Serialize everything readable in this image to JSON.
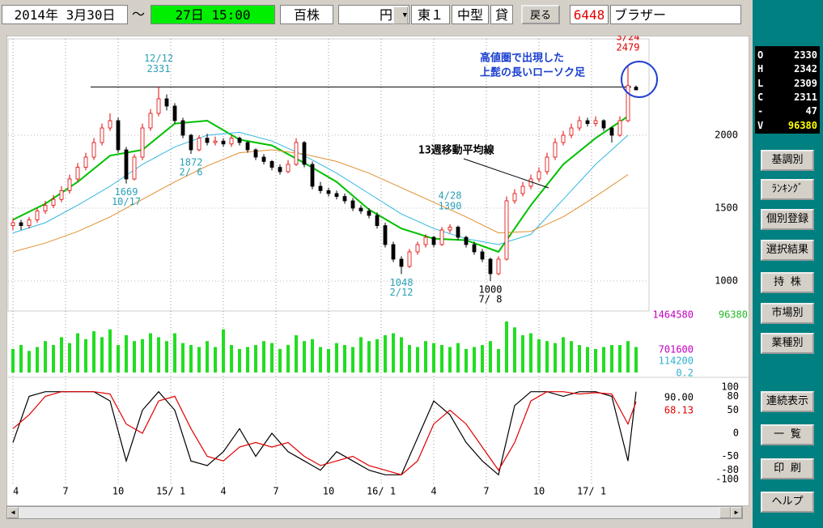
{
  "toolbar": {
    "date_from": "2014年 3月30日",
    "tilde": "～",
    "date_to": "27日 15:00",
    "unit": "百株",
    "currency": "円",
    "market": "東１",
    "size": "中型",
    "margin": "貸",
    "back": "戻る",
    "code": "6448",
    "name": "ブラザー"
  },
  "quote": [
    {
      "label": "O",
      "value": 2330
    },
    {
      "label": "H",
      "value": 2342
    },
    {
      "label": "L",
      "value": 2309
    },
    {
      "label": "C",
      "value": 2311
    },
    {
      "label": "-",
      "value": 47
    },
    {
      "label": "V",
      "value": 96380
    }
  ],
  "buttons": [
    "基調別",
    "ﾗﾝｷﾝｸﾞ",
    "個別登録",
    "選択結果",
    "持 株",
    "市場別",
    "業種別",
    "連続表示",
    "一 覧",
    "印 刷",
    "ヘルプ"
  ],
  "chart_data": {
    "type": "candlestick",
    "x": [
      0,
      2,
      4,
      6,
      8,
      10,
      12,
      14,
      16,
      18,
      20,
      22,
      24,
      26,
      28,
      30,
      32,
      34,
      36,
      38,
      40,
      42,
      44,
      46,
      48,
      50,
      52,
      54,
      56,
      58,
      60,
      62,
      64,
      66,
      68,
      70,
      72,
      74,
      76,
      78,
      80,
      82,
      84,
      86,
      88,
      90,
      92,
      94,
      96,
      98,
      100,
      102,
      104,
      106,
      108,
      110,
      112,
      114,
      116,
      118,
      120,
      122,
      124,
      126,
      128,
      130,
      132,
      134,
      136,
      138,
      140,
      142,
      144,
      146,
      148,
      150,
      152,
      154
    ],
    "ohlc": [
      [
        1380,
        1430,
        1350,
        1400
      ],
      [
        1400,
        1420,
        1350,
        1380
      ],
      [
        1380,
        1440,
        1360,
        1420
      ],
      [
        1420,
        1500,
        1400,
        1480
      ],
      [
        1480,
        1550,
        1460,
        1520
      ],
      [
        1520,
        1590,
        1500,
        1560
      ],
      [
        1560,
        1650,
        1540,
        1620
      ],
      [
        1620,
        1730,
        1600,
        1700
      ],
      [
        1700,
        1810,
        1680,
        1780
      ],
      [
        1780,
        1880,
        1760,
        1850
      ],
      [
        1850,
        1980,
        1830,
        1950
      ],
      [
        1950,
        2080,
        1930,
        2050
      ],
      [
        2050,
        2150,
        2030,
        2100
      ],
      [
        2100,
        2120,
        1880,
        1900
      ],
      [
        1900,
        1920,
        1669,
        1700
      ],
      [
        1700,
        1870,
        1690,
        1850
      ],
      [
        1850,
        2080,
        1830,
        2050
      ],
      [
        2050,
        2180,
        2030,
        2150
      ],
      [
        2150,
        2331,
        2130,
        2250
      ],
      [
        2250,
        2280,
        2170,
        2200
      ],
      [
        2200,
        2220,
        2080,
        2100
      ],
      [
        2100,
        2120,
        1980,
        2000
      ],
      [
        2000,
        2010,
        1872,
        1900
      ],
      [
        1900,
        2000,
        1890,
        1980
      ],
      [
        1980,
        2010,
        1930,
        1950
      ],
      [
        1950,
        1990,
        1930,
        1960
      ],
      [
        1960,
        1980,
        1920,
        1940
      ],
      [
        1940,
        2000,
        1920,
        1980
      ],
      [
        1980,
        1990,
        1930,
        1950
      ],
      [
        1950,
        1960,
        1880,
        1900
      ],
      [
        1900,
        1910,
        1830,
        1850
      ],
      [
        1850,
        1870,
        1800,
        1820
      ],
      [
        1820,
        1830,
        1760,
        1780
      ],
      [
        1780,
        1800,
        1730,
        1750
      ],
      [
        1750,
        1830,
        1740,
        1800
      ],
      [
        1800,
        1980,
        1790,
        1950
      ],
      [
        1950,
        1960,
        1780,
        1800
      ],
      [
        1800,
        1820,
        1630,
        1650
      ],
      [
        1650,
        1680,
        1600,
        1620
      ],
      [
        1620,
        1640,
        1580,
        1600
      ],
      [
        1600,
        1620,
        1560,
        1580
      ],
      [
        1580,
        1600,
        1530,
        1550
      ],
      [
        1550,
        1570,
        1480,
        1500
      ],
      [
        1500,
        1520,
        1460,
        1480
      ],
      [
        1480,
        1500,
        1430,
        1450
      ],
      [
        1450,
        1470,
        1360,
        1380
      ],
      [
        1380,
        1400,
        1230,
        1250
      ],
      [
        1250,
        1270,
        1130,
        1150
      ],
      [
        1150,
        1170,
        1048,
        1100
      ],
      [
        1100,
        1220,
        1090,
        1200
      ],
      [
        1200,
        1270,
        1180,
        1250
      ],
      [
        1250,
        1320,
        1230,
        1300
      ],
      [
        1300,
        1310,
        1230,
        1250
      ],
      [
        1250,
        1370,
        1240,
        1350
      ],
      [
        1350,
        1390,
        1330,
        1370
      ],
      [
        1370,
        1380,
        1280,
        1300
      ],
      [
        1300,
        1310,
        1230,
        1250
      ],
      [
        1250,
        1270,
        1180,
        1200
      ],
      [
        1200,
        1220,
        1130,
        1150
      ],
      [
        1150,
        1160,
        1000,
        1050
      ],
      [
        1050,
        1170,
        1040,
        1150
      ],
      [
        1150,
        1580,
        1140,
        1550
      ],
      [
        1550,
        1630,
        1530,
        1600
      ],
      [
        1600,
        1680,
        1580,
        1650
      ],
      [
        1650,
        1730,
        1630,
        1700
      ],
      [
        1700,
        1780,
        1680,
        1750
      ],
      [
        1750,
        1880,
        1730,
        1850
      ],
      [
        1850,
        1980,
        1830,
        1950
      ],
      [
        1950,
        2030,
        1930,
        2000
      ],
      [
        2000,
        2080,
        1980,
        2050
      ],
      [
        2050,
        2130,
        2030,
        2100
      ],
      [
        2100,
        2120,
        2060,
        2080
      ],
      [
        2080,
        2130,
        2060,
        2100
      ],
      [
        2100,
        2110,
        2030,
        2050
      ],
      [
        2050,
        2060,
        1950,
        2000
      ],
      [
        2000,
        2130,
        1990,
        2100
      ],
      [
        2100,
        2479,
        2090,
        2340
      ],
      [
        2330,
        2342,
        2309,
        2311
      ]
    ],
    "up_color": "#e00000",
    "down_color": "#000000",
    "xlim": [
      -1,
      157
    ],
    "xticks": [
      {
        "value": 0,
        "label": "4"
      },
      {
        "value": 13,
        "label": "7"
      },
      {
        "value": 26,
        "label": "10"
      },
      {
        "value": 39,
        "label": "15/ 1"
      },
      {
        "value": 52,
        "label": "4"
      },
      {
        "value": 65,
        "label": "7"
      },
      {
        "value": 78,
        "label": "10"
      },
      {
        "value": 91,
        "label": "16/ 1"
      },
      {
        "value": 104,
        "label": "4"
      },
      {
        "value": 117,
        "label": "7"
      },
      {
        "value": 130,
        "label": "10"
      },
      {
        "value": 143,
        "label": "17/ 1"
      }
    ],
    "ylim": [
      800,
      2650
    ],
    "yticks": [
      1000,
      1500,
      2000
    ],
    "grid": true,
    "moving_averages": [
      {
        "color": "#00c000",
        "x": [
          0,
          8,
          16,
          24,
          32,
          40,
          48,
          56,
          64,
          72,
          80,
          88,
          96,
          104,
          112,
          120,
          128,
          136,
          144,
          152
        ],
        "values": [
          1420,
          1530,
          1680,
          1860,
          1900,
          2080,
          2100,
          1970,
          1930,
          1810,
          1680,
          1490,
          1360,
          1290,
          1280,
          1200,
          1520,
          1800,
          1980,
          2130
        ]
      },
      {
        "color": "#30b8e0",
        "x": [
          0,
          8,
          16,
          24,
          32,
          40,
          48,
          56,
          64,
          72,
          80,
          88,
          96,
          104,
          112,
          120,
          128,
          136,
          144,
          152
        ],
        "values": [
          1330,
          1400,
          1520,
          1650,
          1800,
          1920,
          2000,
          2020,
          1960,
          1860,
          1740,
          1600,
          1460,
          1360,
          1290,
          1250,
          1320,
          1560,
          1800,
          2000
        ]
      },
      {
        "color": "#e09030",
        "x": [
          0,
          8,
          16,
          24,
          32,
          40,
          48,
          56,
          64,
          72,
          80,
          88,
          96,
          104,
          112,
          120,
          128,
          136,
          144,
          152
        ],
        "values": [
          1200,
          1260,
          1340,
          1440,
          1560,
          1680,
          1790,
          1880,
          1900,
          1870,
          1820,
          1740,
          1640,
          1540,
          1440,
          1330,
          1340,
          1440,
          1580,
          1730
        ]
      }
    ],
    "annotations": [
      {
        "date": "12/12",
        "value": 2331,
        "color": "#2aa0b8"
      },
      {
        "date": "10/17",
        "value": 1669,
        "color": "#2aa0b8"
      },
      {
        "date": "2/ 6",
        "value": 1872,
        "color": "#2aa0b8"
      },
      {
        "date": "2/12",
        "value": 1048,
        "color": "#2aa0b8"
      },
      {
        "date": "4/28",
        "value": 1390,
        "color": "#2aa0b8"
      },
      {
        "date": "7/ 8",
        "value": 1000,
        "color": "#000000"
      },
      {
        "date": "3/24",
        "value": 2479,
        "color": "#e00000"
      }
    ],
    "notes": [
      {
        "lines": [
          "高値圏で出現した",
          "上髭の長いローソク足"
        ],
        "color": "#1a3fd0"
      },
      {
        "lines": [
          "13週移動平均線"
        ],
        "color": "#000000"
      }
    ],
    "volume": {
      "color": "#22dd22",
      "values": [
        600000,
        700000,
        550000,
        650000,
        800000,
        700000,
        900000,
        750000,
        1000000,
        850000,
        1050000,
        900000,
        1100000,
        700000,
        950000,
        800000,
        850000,
        1000000,
        900000,
        800000,
        1000000,
        750000,
        700000,
        650000,
        800000,
        650000,
        1100000,
        700000,
        600000,
        650000,
        700000,
        800000,
        750000,
        600000,
        700000,
        950000,
        800000,
        850000,
        650000,
        600000,
        750000,
        700000,
        650000,
        900000,
        800000,
        850000,
        950000,
        1000000,
        900000,
        700000,
        650000,
        800000,
        750000,
        700000,
        650000,
        750000,
        600000,
        650000,
        700000,
        800000,
        600000,
        1300000,
        1150000,
        950000,
        1000000,
        850000,
        800000,
        750000,
        900000,
        800000,
        700000,
        650000,
        600000,
        650000,
        700000,
        700000,
        800000,
        650000
      ],
      "ylim": [
        0,
        1464580
      ],
      "yticks": [
        701600
      ],
      "scale_color": "#c000c0",
      "current": 96380,
      "current_color": "#22bb22",
      "secondary": [
        114200,
        0.2
      ],
      "secondary_color": "#30b0d0"
    },
    "oscillator": {
      "ylim": [
        -100,
        100
      ],
      "yticks": [
        100,
        80,
        50,
        0,
        -50,
        -80,
        -100
      ],
      "series": [
        {
          "color": "#000000",
          "x": [
            0,
            4,
            8,
            12,
            16,
            20,
            24,
            28,
            32,
            36,
            40,
            44,
            48,
            52,
            56,
            60,
            64,
            68,
            72,
            76,
            80,
            84,
            88,
            92,
            96,
            100,
            104,
            108,
            112,
            116,
            120,
            124,
            128,
            132,
            136,
            140,
            144,
            148,
            152,
            154
          ],
          "values": [
            -20,
            80,
            90,
            90,
            90,
            90,
            70,
            -60,
            50,
            90,
            50,
            -60,
            -70,
            -40,
            10,
            -50,
            0,
            -40,
            -60,
            -80,
            -40,
            -60,
            -80,
            -90,
            -90,
            -10,
            70,
            40,
            -20,
            -60,
            -90,
            60,
            90,
            90,
            80,
            90,
            90,
            80,
            -60,
            90
          ],
          "current": {
            "value": 90,
            "label": "90.00"
          }
        },
        {
          "color": "#e00000",
          "x": [
            0,
            4,
            8,
            12,
            16,
            20,
            24,
            28,
            32,
            36,
            40,
            44,
            48,
            52,
            56,
            60,
            64,
            68,
            72,
            76,
            80,
            84,
            88,
            92,
            96,
            100,
            104,
            108,
            112,
            116,
            120,
            124,
            128,
            132,
            136,
            140,
            144,
            148,
            152,
            154
          ],
          "values": [
            10,
            40,
            80,
            90,
            90,
            90,
            85,
            20,
            0,
            70,
            80,
            10,
            -50,
            -60,
            -30,
            -20,
            -30,
            -20,
            -50,
            -70,
            -60,
            -50,
            -70,
            -80,
            -90,
            -60,
            20,
            50,
            20,
            -30,
            -80,
            -20,
            70,
            90,
            90,
            85,
            88,
            85,
            20,
            68.13
          ],
          "current": {
            "value": 68.13,
            "label": "68.13"
          }
        }
      ]
    }
  }
}
